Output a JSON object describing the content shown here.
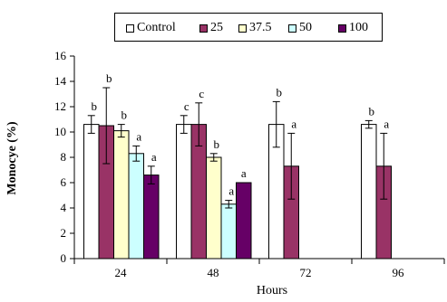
{
  "chart_data": {
    "type": "bar",
    "xlabel": "Hours",
    "ylabel": "Monocye (%)",
    "ylim": [
      0,
      16
    ],
    "yticks": [
      0,
      2,
      4,
      6,
      8,
      10,
      12,
      14,
      16
    ],
    "categories": [
      "24",
      "48",
      "72",
      "96"
    ],
    "grid": false,
    "legend_position": "top",
    "series": [
      {
        "name": "Control",
        "color": "#ffffff",
        "values": [
          10.6,
          10.6,
          10.6,
          10.6
        ],
        "errors": [
          0.7,
          0.7,
          1.8,
          0.3
        ],
        "letters": [
          "b",
          "c",
          "b",
          "b"
        ]
      },
      {
        "name": "25",
        "color": "#993366",
        "values": [
          10.5,
          10.6,
          7.3,
          7.3
        ],
        "errors": [
          3.0,
          1.7,
          2.6,
          2.6
        ],
        "letters": [
          "b",
          "c",
          "a",
          "a"
        ]
      },
      {
        "name": "37.5",
        "color": "#ffffcc",
        "values": [
          10.1,
          8.0,
          null,
          null
        ],
        "errors": [
          0.5,
          0.3,
          null,
          null
        ],
        "letters": [
          "b",
          "b",
          null,
          null
        ]
      },
      {
        "name": "50",
        "color": "#ccffff",
        "values": [
          8.3,
          4.3,
          null,
          null
        ],
        "errors": [
          0.6,
          0.3,
          null,
          null
        ],
        "letters": [
          "a",
          "a",
          null,
          null
        ]
      },
      {
        "name": "100",
        "color": "#660066",
        "values": [
          6.6,
          6.0,
          null,
          null
        ],
        "errors": [
          0.7,
          null,
          null,
          null
        ],
        "letters": [
          "a",
          "a",
          null,
          null
        ]
      }
    ]
  }
}
